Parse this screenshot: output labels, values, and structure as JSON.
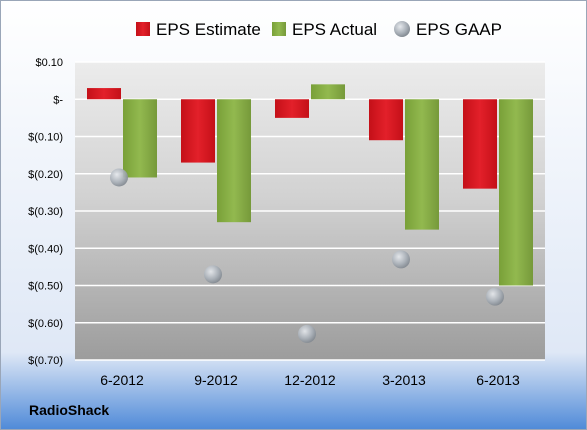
{
  "footer": {
    "company": "RadioShack"
  },
  "colors": {
    "estimate": "#e3202a",
    "actual": "#8cb24a",
    "gaap": "#a9b0b8"
  },
  "chart_data": {
    "type": "bar",
    "categories": [
      "6-2012",
      "9-2012",
      "12-2012",
      "3-2013",
      "6-2013"
    ],
    "series": [
      {
        "name": "EPS Estimate",
        "type": "bar",
        "values": [
          0.03,
          -0.17,
          -0.05,
          -0.11,
          -0.24
        ]
      },
      {
        "name": "EPS Actual",
        "type": "bar",
        "values": [
          -0.21,
          -0.33,
          0.04,
          -0.35,
          -0.5
        ]
      },
      {
        "name": "EPS GAAP",
        "type": "scatter",
        "values": [
          -0.21,
          -0.47,
          -0.63,
          -0.43,
          -0.53
        ]
      }
    ],
    "yticks": [
      "$0.10",
      "$-",
      "$(0.10)",
      "$(0.20)",
      "$(0.30)",
      "$(0.40)",
      "$(0.50)",
      "$(0.60)",
      "$(0.70)"
    ],
    "ylim": [
      -0.7,
      0.1
    ],
    "legend_position": "top",
    "grid": true
  }
}
